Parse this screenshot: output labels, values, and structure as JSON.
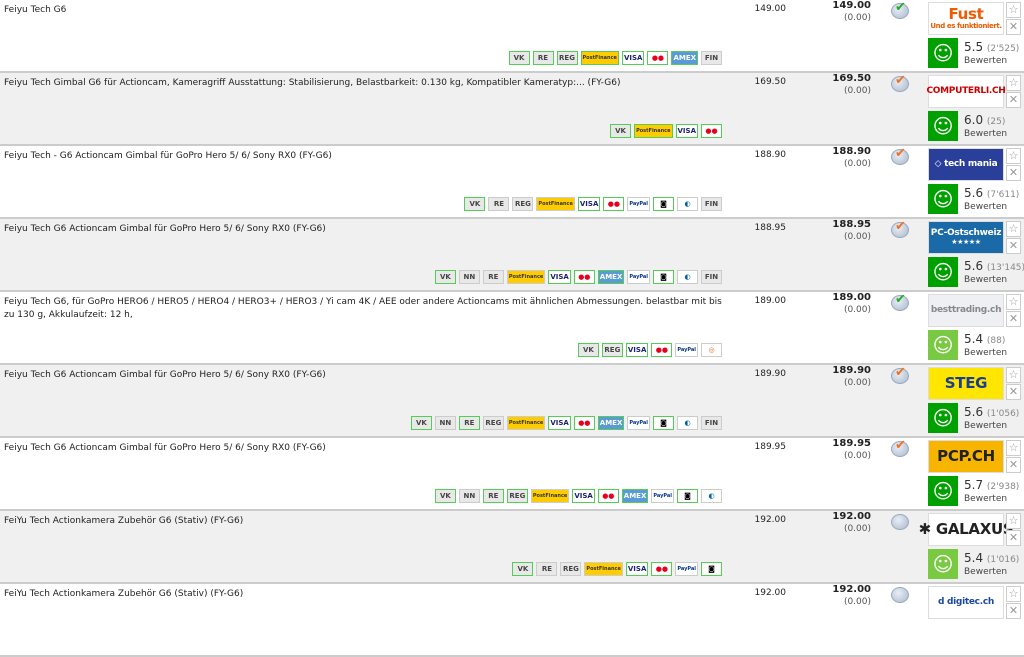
{
  "colors": {
    "ok_green": "#00a000",
    "light_green": "#7ac943",
    "check_green": "#2a2",
    "check_orange": "#f07020"
  },
  "badge_styles": {
    "PF": {
      "label": "PostFinance",
      "bg": "#ffcc00",
      "fg": "#333"
    },
    "VISA": {
      "label": "VISA",
      "bg": "#fff",
      "fg": "#1a1f71"
    },
    "MC": {
      "label": "●●",
      "bg": "#fff",
      "fg": "#e8001c"
    },
    "AMEX": {
      "label": "AMEX",
      "bg": "#5b9bd5",
      "fg": "#fff"
    },
    "PAYPAL": {
      "label": "PayPal",
      "bg": "#fff",
      "fg": "#003087"
    },
    "LYO": {
      "label": "◙",
      "bg": "#fff",
      "fg": "#000"
    },
    "DIN": {
      "label": "◐",
      "bg": "#fff",
      "fg": "#0060a0"
    },
    "OTHER": {
      "label": "◎",
      "bg": "#fff",
      "fg": "#e07030"
    }
  },
  "rows": [
    {
      "desc": "Feiyu Tech G6",
      "price": "149.00",
      "total": "149.00",
      "diff": "(0.00)",
      "status": "green",
      "shop": "Fust",
      "shop_sub": "Und es funktioniert.",
      "logo_bg": "#fff",
      "logo_fg": "#f05a00",
      "rating": "5.5",
      "count": "(2'525)",
      "smile": "dark",
      "rate_label": "Bewerten",
      "badges": [
        [
          "VK",
          1
        ],
        [
          "RE",
          1
        ],
        [
          "REG",
          1
        ],
        [
          "PF",
          1
        ],
        [
          "VISA",
          1
        ],
        [
          "MC",
          1
        ],
        [
          "AMEX",
          1
        ],
        [
          "FIN",
          0
        ]
      ]
    },
    {
      "desc": "Feiyu Tech Gimbal G6 für Actioncam, Kameragriff Ausstattung: Stabilisierung, Belastbarkeit: 0.130 kg, Kompatibler Kameratyp:... (FY-G6)",
      "price": "169.50",
      "total": "169.50",
      "diff": "(0.00)",
      "status": "orange",
      "shop": "COMPUTERLI.CH",
      "logo_bg": "#fff",
      "logo_fg": "#c00",
      "rating": "6.0",
      "count": "(25)",
      "smile": "dark",
      "rate_label": "Bewerten",
      "badges": [
        [
          "VK",
          1
        ],
        [
          "PF",
          1
        ],
        [
          "VISA",
          1
        ],
        [
          "MC",
          1
        ]
      ]
    },
    {
      "desc": "Feiyu Tech - G6 Actioncam Gimbal für GoPro Hero 5/ 6/ Sony RX0 (FY-G6)",
      "price": "188.90",
      "total": "188.90",
      "diff": "(0.00)",
      "status": "orange",
      "shop": "◇ tech mania",
      "logo_bg": "#2a3f9a",
      "logo_fg": "#fff",
      "rating": "5.6",
      "count": "(7'611)",
      "smile": "dark",
      "rate_label": "Bewerten",
      "badges": [
        [
          "VK",
          1
        ],
        [
          "RE",
          0
        ],
        [
          "REG",
          0
        ],
        [
          "PF",
          0
        ],
        [
          "VISA",
          1
        ],
        [
          "MC",
          1
        ],
        [
          "PAYPAL",
          0
        ],
        [
          "LYO",
          1
        ],
        [
          "DIN",
          0
        ],
        [
          "FIN",
          0
        ]
      ]
    },
    {
      "desc": "Feiyu Tech G6 Actioncam Gimbal für GoPro Hero 5/ 6/ Sony RX0 (FY-G6)",
      "price": "188.95",
      "total": "188.95",
      "diff": "(0.00)",
      "status": "orange",
      "shop": "PC-Ostschweiz",
      "shop_sub": "★★★★★",
      "logo_bg": "#1a6aa8",
      "logo_fg": "#fff",
      "rating": "5.6",
      "count": "(13'145)",
      "smile": "dark",
      "rate_label": "Bewerten",
      "badges": [
        [
          "VK",
          1
        ],
        [
          "NN",
          0
        ],
        [
          "RE",
          0
        ],
        [
          "PF",
          0
        ],
        [
          "VISA",
          1
        ],
        [
          "MC",
          1
        ],
        [
          "AMEX",
          1
        ],
        [
          "PAYPAL",
          0
        ],
        [
          "LYO",
          1
        ],
        [
          "DIN",
          0
        ],
        [
          "FIN",
          0
        ]
      ]
    },
    {
      "desc": "Feiyu Tech G6, für GoPro HERO6 / HERO5 / HERO4 / HERO3+ / HERO3 / Yi cam 4K / AEE oder andere Actioncams mit ähnlichen Abmessungen. belastbar mit bis zu 130 g, Akkulaufzeit: 12 h,",
      "price": "189.00",
      "total": "189.00",
      "diff": "(0.00)",
      "status": "green",
      "shop": "besttrading.ch",
      "logo_bg": "#eef0f4",
      "logo_fg": "#888",
      "rating": "5.4",
      "count": "(88)",
      "smile": "light",
      "rate_label": "Bewerten",
      "badges": [
        [
          "VK",
          1
        ],
        [
          "REG",
          1
        ],
        [
          "VISA",
          1
        ],
        [
          "MC",
          1
        ],
        [
          "PAYPAL",
          0
        ],
        [
          "OTHER",
          0
        ]
      ]
    },
    {
      "desc": "Feiyu Tech G6 Actioncam Gimbal für GoPro Hero 5/ 6/ Sony RX0 (FY-G6)",
      "price": "189.90",
      "total": "189.90",
      "diff": "(0.00)",
      "status": "orange",
      "shop": "STEG",
      "logo_bg": "#ffe600",
      "logo_fg": "#1a3d8f",
      "rating": "5.6",
      "count": "(1'056)",
      "smile": "dark",
      "rate_label": "Bewerten",
      "badges": [
        [
          "VK",
          1
        ],
        [
          "NN",
          0
        ],
        [
          "RE",
          1
        ],
        [
          "REG",
          0
        ],
        [
          "PF",
          0
        ],
        [
          "VISA",
          1
        ],
        [
          "MC",
          1
        ],
        [
          "AMEX",
          1
        ],
        [
          "PAYPAL",
          0
        ],
        [
          "LYO",
          1
        ],
        [
          "DIN",
          0
        ],
        [
          "FIN",
          0
        ]
      ]
    },
    {
      "desc": "Feiyu Tech G6 Actioncam Gimbal für GoPro Hero 5/ 6/ Sony RX0 (FY-G6)",
      "price": "189.95",
      "total": "189.95",
      "diff": "(0.00)",
      "status": "orange",
      "shop": "PCP.CH",
      "logo_bg": "#f7b500",
      "logo_fg": "#222",
      "rating": "5.7",
      "count": "(2'938)",
      "smile": "dark",
      "rate_label": "Bewerten",
      "badges": [
        [
          "VK",
          1
        ],
        [
          "NN",
          0
        ],
        [
          "RE",
          1
        ],
        [
          "REG",
          1
        ],
        [
          "PF",
          0
        ],
        [
          "VISA",
          1
        ],
        [
          "MC",
          1
        ],
        [
          "AMEX",
          1
        ],
        [
          "PAYPAL",
          0
        ],
        [
          "LYO",
          1
        ],
        [
          "DIN",
          0
        ]
      ]
    },
    {
      "desc": "FeiYu Tech Actionkamera Zubehör G6 (Stativ) (FY-G6)",
      "price": "192.00",
      "total": "192.00",
      "diff": "(0.00)",
      "status": "none",
      "shop": "✱ GALAXUS",
      "logo_bg": "#fff",
      "logo_fg": "#222",
      "rating": "5.4",
      "count": "(1'016)",
      "smile": "light",
      "rate_label": "Bewerten",
      "badges": [
        [
          "VK",
          1
        ],
        [
          "RE",
          0
        ],
        [
          "REG",
          0
        ],
        [
          "PF",
          0
        ],
        [
          "VISA",
          1
        ],
        [
          "MC",
          1
        ],
        [
          "PAYPAL",
          0
        ],
        [
          "LYO",
          1
        ]
      ]
    },
    {
      "desc": "FeiYu Tech Actionkamera Zubehör G6 (Stativ) (FY-G6)",
      "price": "192.00",
      "total": "192.00",
      "diff": "(0.00)",
      "status": "none",
      "shop": "d digitec.ch",
      "logo_bg": "#fff",
      "logo_fg": "#1a4aa0",
      "badges": []
    }
  ]
}
